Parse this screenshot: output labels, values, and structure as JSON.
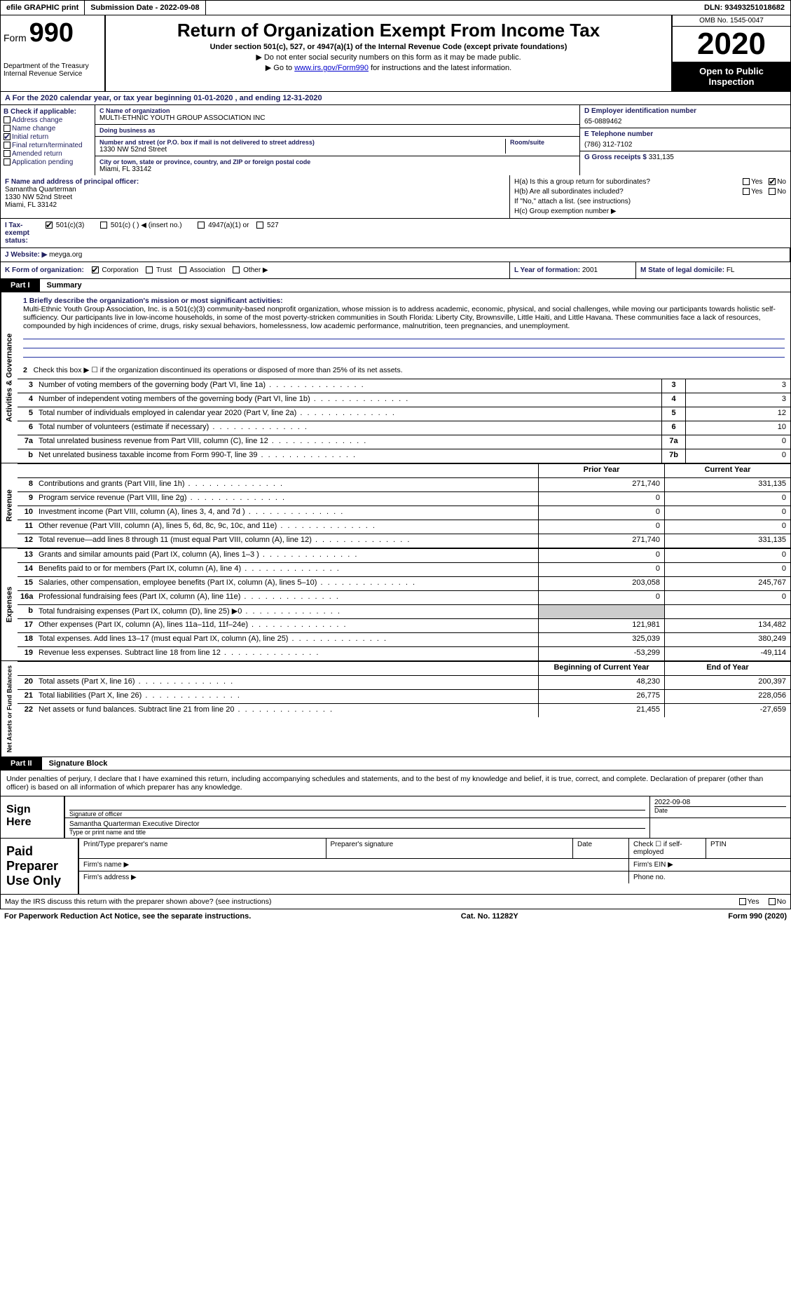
{
  "topbar": {
    "efile": "efile GRAPHIC print",
    "submission_label": "Submission Date - ",
    "submission_date": "2022-09-08",
    "dln_label": "DLN: ",
    "dln": "93493251018682"
  },
  "header": {
    "form_word": "Form",
    "form_num": "990",
    "dept": "Department of the Treasury\nInternal Revenue Service",
    "title": "Return of Organization Exempt From Income Tax",
    "sub": "Under section 501(c), 527, or 4947(a)(1) of the Internal Revenue Code (except private foundations)",
    "note1": "▶ Do not enter social security numbers on this form as it may be made public.",
    "note2_a": "▶ Go to ",
    "note2_link": "www.irs.gov/Form990",
    "note2_b": " for instructions and the latest information.",
    "omb": "OMB No. 1545-0047",
    "year": "2020",
    "inspection": "Open to Public Inspection"
  },
  "rowA": "A For the 2020 calendar year, or tax year beginning 01-01-2020   , and ending 12-31-2020",
  "boxB": {
    "title": "B Check if applicable:",
    "addr": "Address change",
    "name": "Name change",
    "initial": "Initial return",
    "final": "Final return/terminated",
    "amended": "Amended return",
    "app": "Application pending"
  },
  "boxC": {
    "name_lbl": "C Name of organization",
    "name": "MULTI-ETHNIC YOUTH GROUP ASSOCIATION INC",
    "dba_lbl": "Doing business as",
    "dba": "",
    "street_lbl": "Number and street (or P.O. box if mail is not delivered to street address)",
    "street": "1330 NW 52nd Street",
    "room_lbl": "Room/suite",
    "city_lbl": "City or town, state or province, country, and ZIP or foreign postal code",
    "city": "Miami, FL  33142"
  },
  "boxD": {
    "lbl": "D Employer identification number",
    "val": "65-0889462"
  },
  "boxE": {
    "lbl": "E Telephone number",
    "val": "(786) 312-7102"
  },
  "boxG": {
    "lbl": "G Gross receipts $ ",
    "val": "331,135"
  },
  "boxF": {
    "lbl": "F  Name and address of principal officer:",
    "name": "Samantha Quarterman",
    "street": "1330 NW 52nd Street",
    "city": "Miami, FL  33142"
  },
  "boxH": {
    "a": "H(a)  Is this a group return for subordinates?",
    "b": "H(b)  Are all subordinates included?",
    "note": "If \"No,\" attach a list. (see instructions)",
    "c": "H(c)  Group exemption number ▶",
    "yes": "Yes",
    "no": "No"
  },
  "rowI": {
    "lbl": "I  Tax-exempt status:",
    "o1": "501(c)(3)",
    "o2": "501(c) (   ) ◀ (insert no.)",
    "o3": "4947(a)(1) or",
    "o4": "527"
  },
  "rowJ": {
    "lbl": "J Website: ▶",
    "val": "meyga.org"
  },
  "rowK": {
    "lbl": "K Form of organization:",
    "corp": "Corporation",
    "trust": "Trust",
    "assoc": "Association",
    "other": "Other ▶"
  },
  "rowL": {
    "lbl": "L Year of formation: ",
    "val": "2001"
  },
  "rowM": {
    "lbl": "M State of legal domicile: ",
    "val": "FL"
  },
  "part1": {
    "tag": "Part I",
    "title": "Summary"
  },
  "sides": {
    "act": "Activities & Governance",
    "rev": "Revenue",
    "exp": "Expenses",
    "net": "Net Assets or Fund Balances"
  },
  "mission": {
    "lbl": "1   Briefly describe the organization's mission or most significant activities:",
    "text": "Multi-Ethnic Youth Group Association, Inc. is a 501(c)(3) community-based nonprofit organization, whose mission is to address academic, economic, physical, and social challenges, while moving our participants towards holistic self-sufficiency. Our participants live in low-income households, in some of the most poverty-stricken communities in South Florida: Liberty City, Brownsville, Little Haiti, and Little Havana. These communities face a lack of resources, compounded by high incidences of crime, drugs, risky sexual behaviors, homelessness, low academic performance, malnutrition, teen pregnancies, and unemployment."
  },
  "line2": "Check this box ▶ ☐  if the organization discontinued its operations or disposed of more than 25% of its net assets.",
  "lines_gov": [
    {
      "n": "3",
      "d": "Number of voting members of the governing body (Part VI, line 1a)",
      "b": "3",
      "v": "3"
    },
    {
      "n": "4",
      "d": "Number of independent voting members of the governing body (Part VI, line 1b)",
      "b": "4",
      "v": "3"
    },
    {
      "n": "5",
      "d": "Total number of individuals employed in calendar year 2020 (Part V, line 2a)",
      "b": "5",
      "v": "12"
    },
    {
      "n": "6",
      "d": "Total number of volunteers (estimate if necessary)",
      "b": "6",
      "v": "10"
    },
    {
      "n": "7a",
      "d": "Total unrelated business revenue from Part VIII, column (C), line 12",
      "b": "7a",
      "v": "0"
    },
    {
      "n": "b",
      "d": "Net unrelated business taxable income from Form 990-T, line 39",
      "b": "7b",
      "v": "0"
    }
  ],
  "hdr_py": "Prior Year",
  "hdr_cy": "Current Year",
  "lines_rev": [
    {
      "n": "8",
      "d": "Contributions and grants (Part VIII, line 1h)",
      "a": "271,740",
      "b": "331,135"
    },
    {
      "n": "9",
      "d": "Program service revenue (Part VIII, line 2g)",
      "a": "0",
      "b": "0"
    },
    {
      "n": "10",
      "d": "Investment income (Part VIII, column (A), lines 3, 4, and 7d )",
      "a": "0",
      "b": "0"
    },
    {
      "n": "11",
      "d": "Other revenue (Part VIII, column (A), lines 5, 6d, 8c, 9c, 10c, and 11e)",
      "a": "0",
      "b": "0"
    },
    {
      "n": "12",
      "d": "Total revenue—add lines 8 through 11 (must equal Part VIII, column (A), line 12)",
      "a": "271,740",
      "b": "331,135"
    }
  ],
  "lines_exp": [
    {
      "n": "13",
      "d": "Grants and similar amounts paid (Part IX, column (A), lines 1–3 )",
      "a": "0",
      "b": "0"
    },
    {
      "n": "14",
      "d": "Benefits paid to or for members (Part IX, column (A), line 4)",
      "a": "0",
      "b": "0"
    },
    {
      "n": "15",
      "d": "Salaries, other compensation, employee benefits (Part IX, column (A), lines 5–10)",
      "a": "203,058",
      "b": "245,767"
    },
    {
      "n": "16a",
      "d": "Professional fundraising fees (Part IX, column (A), line 11e)",
      "a": "0",
      "b": "0"
    },
    {
      "n": "b",
      "d": "Total fundraising expenses (Part IX, column (D), line 25) ▶0",
      "a": "",
      "b": "",
      "shade": true
    },
    {
      "n": "17",
      "d": "Other expenses (Part IX, column (A), lines 11a–11d, 11f–24e)",
      "a": "121,981",
      "b": "134,482"
    },
    {
      "n": "18",
      "d": "Total expenses. Add lines 13–17 (must equal Part IX, column (A), line 25)",
      "a": "325,039",
      "b": "380,249"
    },
    {
      "n": "19",
      "d": "Revenue less expenses. Subtract line 18 from line 12",
      "a": "-53,299",
      "b": "-49,114"
    }
  ],
  "hdr_boy": "Beginning of Current Year",
  "hdr_eoy": "End of Year",
  "lines_net": [
    {
      "n": "20",
      "d": "Total assets (Part X, line 16)",
      "a": "48,230",
      "b": "200,397"
    },
    {
      "n": "21",
      "d": "Total liabilities (Part X, line 26)",
      "a": "26,775",
      "b": "228,056"
    },
    {
      "n": "22",
      "d": "Net assets or fund balances. Subtract line 21 from line 20",
      "a": "21,455",
      "b": "-27,659"
    }
  ],
  "part2": {
    "tag": "Part II",
    "title": "Signature Block"
  },
  "sig_decl": "Under penalties of perjury, I declare that I have examined this return, including accompanying schedules and statements, and to the best of my knowledge and belief, it is true, correct, and complete. Declaration of preparer (other than officer) is based on all information of which preparer has any knowledge.",
  "sign": {
    "here": "Sign Here",
    "sig_lbl": "Signature of officer",
    "date_lbl": "Date",
    "date": "2022-09-08",
    "name": "Samantha Quarterman  Executive Director",
    "name_lbl": "Type or print name and title"
  },
  "paid": {
    "here": "Paid Preparer Use Only",
    "pname": "Print/Type preparer's name",
    "psig": "Preparer's signature",
    "pdate": "Date",
    "pcheck": "Check ☐ if self-employed",
    "ptin": "PTIN",
    "fname": "Firm's name   ▶",
    "fein": "Firm's EIN ▶",
    "faddr": "Firm's address ▶",
    "phone": "Phone no."
  },
  "discuss": "May the IRS discuss this return with the preparer shown above? (see instructions)",
  "discuss_yes": "Yes",
  "discuss_no": "No",
  "footer": {
    "left": "For Paperwork Reduction Act Notice, see the separate instructions.",
    "mid": "Cat. No. 11282Y",
    "right": "Form 990 (2020)"
  }
}
